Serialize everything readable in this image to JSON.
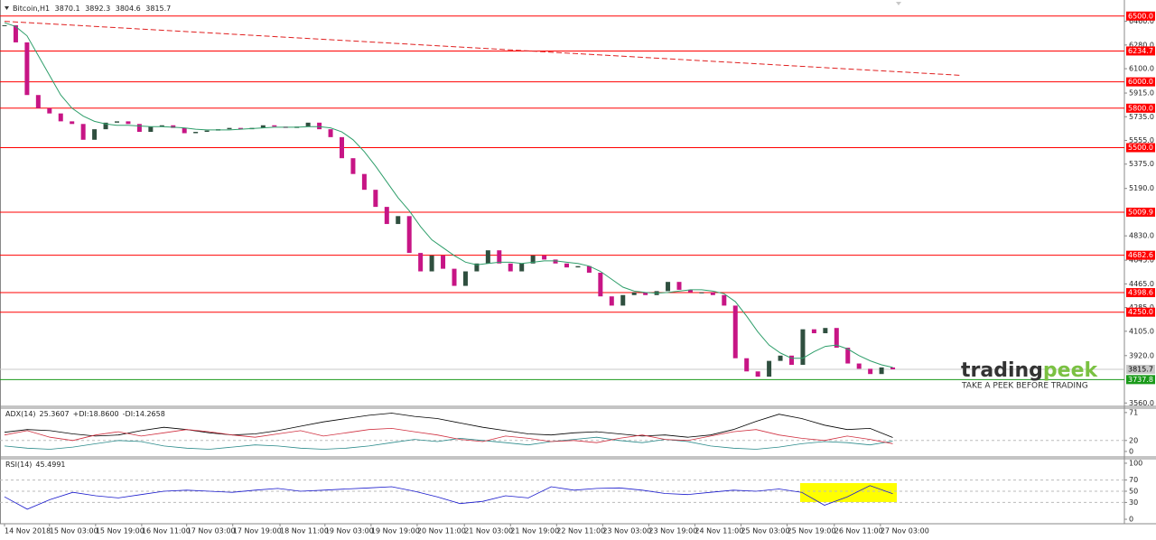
{
  "chart_data": [
    {
      "type": "candlestick",
      "title": "Bitcoin,H1",
      "ohlc": [
        3870.1,
        3892.3,
        3804.6,
        3815.7
      ],
      "close": [
        6430,
        6300,
        5900,
        5800,
        5760,
        5700,
        5680,
        5560,
        5640,
        5690,
        5700,
        5680,
        5620,
        5660,
        5670,
        5650,
        5610,
        5620,
        5630,
        5640,
        5650,
        5640,
        5650,
        5670,
        5660,
        5650,
        5660,
        5690,
        5640,
        5580,
        5420,
        5300,
        5180,
        5050,
        4920,
        4980,
        4700,
        4560,
        4680,
        4580,
        4450,
        4560,
        4620,
        4720,
        4620,
        4560,
        4620,
        4680,
        4650,
        4620,
        4590,
        4600,
        4550,
        4370,
        4300,
        4380,
        4400,
        4380,
        4410,
        4480,
        4420,
        4400,
        4400,
        4380,
        4300,
        3900,
        3800,
        3760,
        3880,
        3920,
        3850,
        4120,
        4090,
        4130,
        3980,
        3860,
        3820,
        3780,
        3830,
        3815.7
      ],
      "up_color": "#2f4f3f",
      "down_color": "#c71585",
      "ma": {
        "color": "#2e9e6a",
        "values": [
          6450,
          6420,
          6350,
          6200,
          6050,
          5900,
          5800,
          5740,
          5700,
          5680,
          5670,
          5670,
          5665,
          5660,
          5660,
          5655,
          5650,
          5640,
          5635,
          5635,
          5635,
          5640,
          5645,
          5650,
          5655,
          5655,
          5655,
          5660,
          5660,
          5650,
          5620,
          5560,
          5470,
          5360,
          5240,
          5120,
          5020,
          4900,
          4800,
          4740,
          4680,
          4630,
          4610,
          4620,
          4630,
          4630,
          4620,
          4630,
          4640,
          4640,
          4630,
          4620,
          4600,
          4560,
          4500,
          4440,
          4410,
          4400,
          4395,
          4400,
          4410,
          4420,
          4420,
          4410,
          4390,
          4330,
          4220,
          4100,
          4000,
          3940,
          3900,
          3900,
          3950,
          3990,
          4000,
          3970,
          3920,
          3880,
          3850,
          3830
        ]
      },
      "trendline": {
        "color": "#e02020",
        "x": [
          0,
          85
        ],
        "y": [
          6460,
          6050
        ]
      },
      "levels": [
        {
          "value": 6500,
          "label": "6500.0",
          "color": "#ff0000",
          "text_color": "#ffffff"
        },
        {
          "value": 6234.7,
          "label": "6234.7",
          "color": "#ff0000",
          "text_color": "#ffffff"
        },
        {
          "value": 6000,
          "label": "6000.0",
          "color": "#ff0000",
          "text_color": "#ffffff"
        },
        {
          "value": 5800,
          "label": "5800.0",
          "color": "#ff0000",
          "text_color": "#ffffff"
        },
        {
          "value": 5500,
          "label": "5500.0",
          "color": "#ff0000",
          "text_color": "#ffffff"
        },
        {
          "value": 5009.9,
          "label": "5009.9",
          "color": "#ff0000",
          "text_color": "#ffffff"
        },
        {
          "value": 4682.6,
          "label": "4682.6",
          "color": "#ff0000",
          "text_color": "#ffffff"
        },
        {
          "value": 4398.6,
          "label": "4398.6",
          "color": "#ff0000",
          "text_color": "#ffffff"
        },
        {
          "value": 4250,
          "label": "4250.0",
          "color": "#ff0000",
          "text_color": "#ffffff"
        },
        {
          "value": 3815.7,
          "label": "3815.7",
          "color": "#c8c8c8",
          "text_color": "#000000"
        },
        {
          "value": 3737.8,
          "label": "3737.8",
          "color": "#1a9a1a",
          "text_color": "#ffffff"
        }
      ],
      "ylim": [
        3555,
        6622
      ],
      "yticks": [
        {
          "value": 6460,
          "label": "6460.0"
        },
        {
          "value": 6280,
          "label": "6280.0"
        },
        {
          "value": 6100,
          "label": "6100.0"
        },
        {
          "value": 5915,
          "label": "5915.0"
        },
        {
          "value": 5735,
          "label": "5735.0"
        },
        {
          "value": 5555,
          "label": "5555.0"
        },
        {
          "value": 5375,
          "label": "5375.0"
        },
        {
          "value": 5190,
          "label": "5190.0"
        },
        {
          "value": 4830,
          "label": "4830.0"
        },
        {
          "value": 4645,
          "label": "4645.0"
        },
        {
          "value": 4465,
          "label": "4465.0"
        },
        {
          "value": 4285,
          "label": "4285.0"
        },
        {
          "value": 4105,
          "label": "4105.0"
        },
        {
          "value": 3920,
          "label": "3920.0"
        },
        {
          "value": 3560,
          "label": "3560.0"
        }
      ]
    },
    {
      "type": "line",
      "title": "ADX(14)",
      "readout": [
        {
          "value": 25.3607,
          "label": "25.3607"
        },
        {
          "value": 18.86,
          "label": "+DI:18.8600"
        },
        {
          "value": 14.2658,
          "label": "-DI:14.2658"
        }
      ],
      "series": [
        {
          "color": "#000000",
          "values": [
            35,
            40,
            38,
            32,
            28,
            30,
            38,
            44,
            40,
            34,
            30,
            32,
            38,
            46,
            54,
            60,
            66,
            70,
            64,
            60,
            52,
            44,
            38,
            32,
            30,
            34,
            36,
            32,
            28,
            30,
            26,
            30,
            40,
            55,
            68,
            60,
            48,
            40,
            42,
            25.3607
          ]
        },
        {
          "color": "#2a8a8a",
          "values": [
            10,
            6,
            4,
            8,
            14,
            20,
            18,
            10,
            6,
            4,
            8,
            12,
            10,
            6,
            4,
            6,
            10,
            16,
            22,
            18,
            24,
            20,
            16,
            12,
            18,
            22,
            26,
            20,
            16,
            22,
            18,
            10,
            6,
            4,
            8,
            14,
            18,
            16,
            12,
            18.86
          ]
        },
        {
          "color": "#d03040",
          "values": [
            30,
            38,
            26,
            20,
            30,
            36,
            28,
            34,
            40,
            36,
            30,
            26,
            32,
            38,
            28,
            34,
            40,
            42,
            36,
            30,
            22,
            18,
            28,
            24,
            18,
            20,
            16,
            24,
            30,
            22,
            20,
            28,
            36,
            40,
            30,
            24,
            20,
            28,
            22,
            14.2658
          ]
        }
      ],
      "ylim": [
        -10,
        79
      ],
      "yticks": [
        71,
        20,
        0
      ],
      "levels": [
        20
      ]
    },
    {
      "type": "line",
      "title": "RSI(14)",
      "readout": [
        {
          "value": 45.4991,
          "label": "45.4991"
        }
      ],
      "series": [
        {
          "color": "#1a1acc",
          "values": [
            40,
            18,
            35,
            48,
            42,
            38,
            44,
            50,
            52,
            50,
            48,
            52,
            55,
            50,
            52,
            54,
            56,
            58,
            50,
            40,
            28,
            32,
            42,
            38,
            58,
            52,
            55,
            56,
            52,
            46,
            44,
            48,
            52,
            50,
            54,
            48,
            25,
            40,
            60,
            45.4991
          ]
        }
      ],
      "ylim": [
        -8,
        108
      ],
      "yticks": [
        100,
        70,
        50,
        30,
        0
      ],
      "levels": [
        70,
        50,
        30
      ],
      "xticks": [
        {
          "value": 0,
          "label": "14 Nov 2018"
        },
        {
          "value": 4,
          "label": "15 Nov 03:00"
        },
        {
          "value": 8.1,
          "label": "15 Nov 19:00"
        },
        {
          "value": 12.2,
          "label": "16 Nov 11:00"
        },
        {
          "value": 16.2,
          "label": "17 Nov 03:00"
        },
        {
          "value": 20.3,
          "label": "17 Nov 19:00"
        },
        {
          "value": 24.5,
          "label": "18 Nov 11:00"
        },
        {
          "value": 28.5,
          "label": "19 Nov 03:00"
        },
        {
          "value": 32.6,
          "label": "19 Nov 19:00"
        },
        {
          "value": 36.7,
          "label": "20 Nov 11:00"
        },
        {
          "value": 40.9,
          "label": "21 Nov 03:00"
        },
        {
          "value": 45,
          "label": "21 Nov 19:00"
        },
        {
          "value": 49.1,
          "label": "22 Nov 11:00"
        },
        {
          "value": 53.2,
          "label": "23 Nov 03:00"
        },
        {
          "value": 57.3,
          "label": "23 Nov 19:00"
        },
        {
          "value": 61.4,
          "label": "24 Nov 11:00"
        },
        {
          "value": 65.5,
          "label": "25 Nov 03:00"
        },
        {
          "value": 69.6,
          "label": "25 Nov 19:00"
        },
        {
          "value": 73.8,
          "label": "26 Nov 11:00"
        },
        {
          "value": 77.9,
          "label": "27 Nov 03:00"
        }
      ]
    }
  ],
  "logo": {
    "brand": "trading",
    "brand_accent": "peek",
    "tagline": "TAKE A PEEK BEFORE TRADING"
  }
}
